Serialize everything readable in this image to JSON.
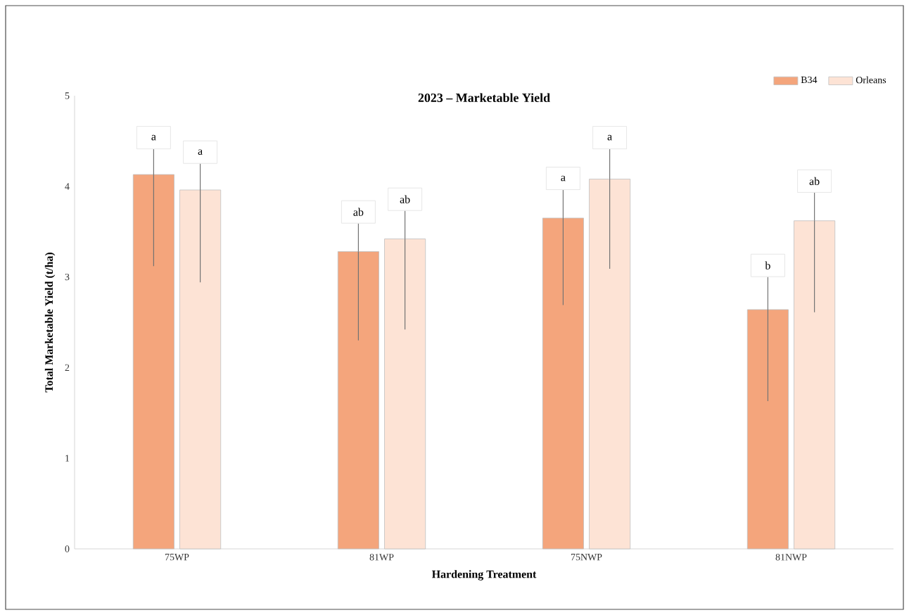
{
  "chart_data": {
    "type": "bar",
    "title": "2023 – Marketable Yield",
    "xlabel": "Hardening Treatment",
    "ylabel": "Total Marketable Yield (t/ha)",
    "categories": [
      "75WP",
      "81WP",
      "75NWP",
      "81NWP"
    ],
    "series": [
      {
        "name": "B34",
        "color": "#f4a57c",
        "values": [
          4.13,
          3.28,
          3.65,
          2.64
        ],
        "errors": [
          [
            3.12,
            4.41
          ],
          [
            2.3,
            3.59
          ],
          [
            2.69,
            3.96
          ],
          [
            1.63,
            3.0
          ]
        ]
      },
      {
        "name": "Orleans",
        "color": "#fde3d5",
        "values": [
          3.96,
          3.42,
          4.08,
          3.62
        ],
        "errors": [
          [
            2.94,
            4.25
          ],
          [
            2.42,
            3.73
          ],
          [
            3.09,
            4.41
          ],
          [
            2.61,
            3.93
          ]
        ]
      }
    ],
    "ylim": [
      0,
      5
    ],
    "yticks": [
      0,
      1,
      2,
      3,
      4,
      5
    ],
    "legend": "top right",
    "annotations": [
      "a",
      "a",
      "ab",
      "ab",
      "a",
      "a",
      "b",
      "ab"
    ]
  }
}
